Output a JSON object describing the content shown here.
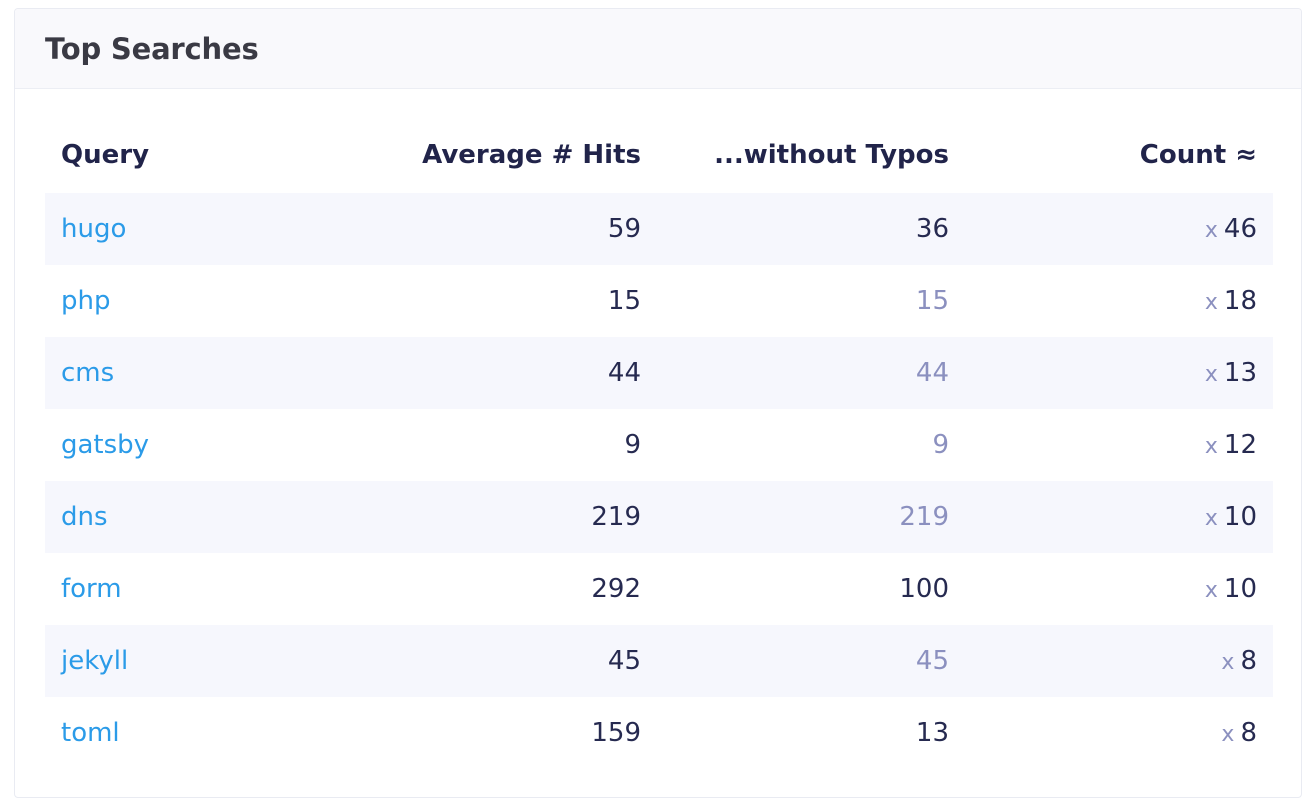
{
  "card": {
    "title": "Top Searches"
  },
  "table": {
    "headers": {
      "query": "Query",
      "avg_hits": "Average # Hits",
      "without_typos": "...without Typos",
      "count": "Count ≈"
    },
    "count_prefix": "x",
    "rows": [
      {
        "query": "hugo",
        "avg_hits": "59",
        "without_typos": "36",
        "count": "46"
      },
      {
        "query": "php",
        "avg_hits": "15",
        "without_typos": "15",
        "count": "18"
      },
      {
        "query": "cms",
        "avg_hits": "44",
        "without_typos": "44",
        "count": "13"
      },
      {
        "query": "gatsby",
        "avg_hits": "9",
        "without_typos": "9",
        "count": "12"
      },
      {
        "query": "dns",
        "avg_hits": "219",
        "without_typos": "219",
        "count": "10"
      },
      {
        "query": "form",
        "avg_hits": "292",
        "without_typos": "100",
        "count": "10"
      },
      {
        "query": "jekyll",
        "avg_hits": "45",
        "without_typos": "45",
        "count": "8"
      },
      {
        "query": "toml",
        "avg_hits": "159",
        "without_typos": "13",
        "count": "8"
      }
    ]
  },
  "colors": {
    "link": "#2b9be8",
    "text": "#262a50",
    "muted": "#8b90bf",
    "stripe": "#f6f7fd",
    "header_bg": "#f9f9fc"
  }
}
